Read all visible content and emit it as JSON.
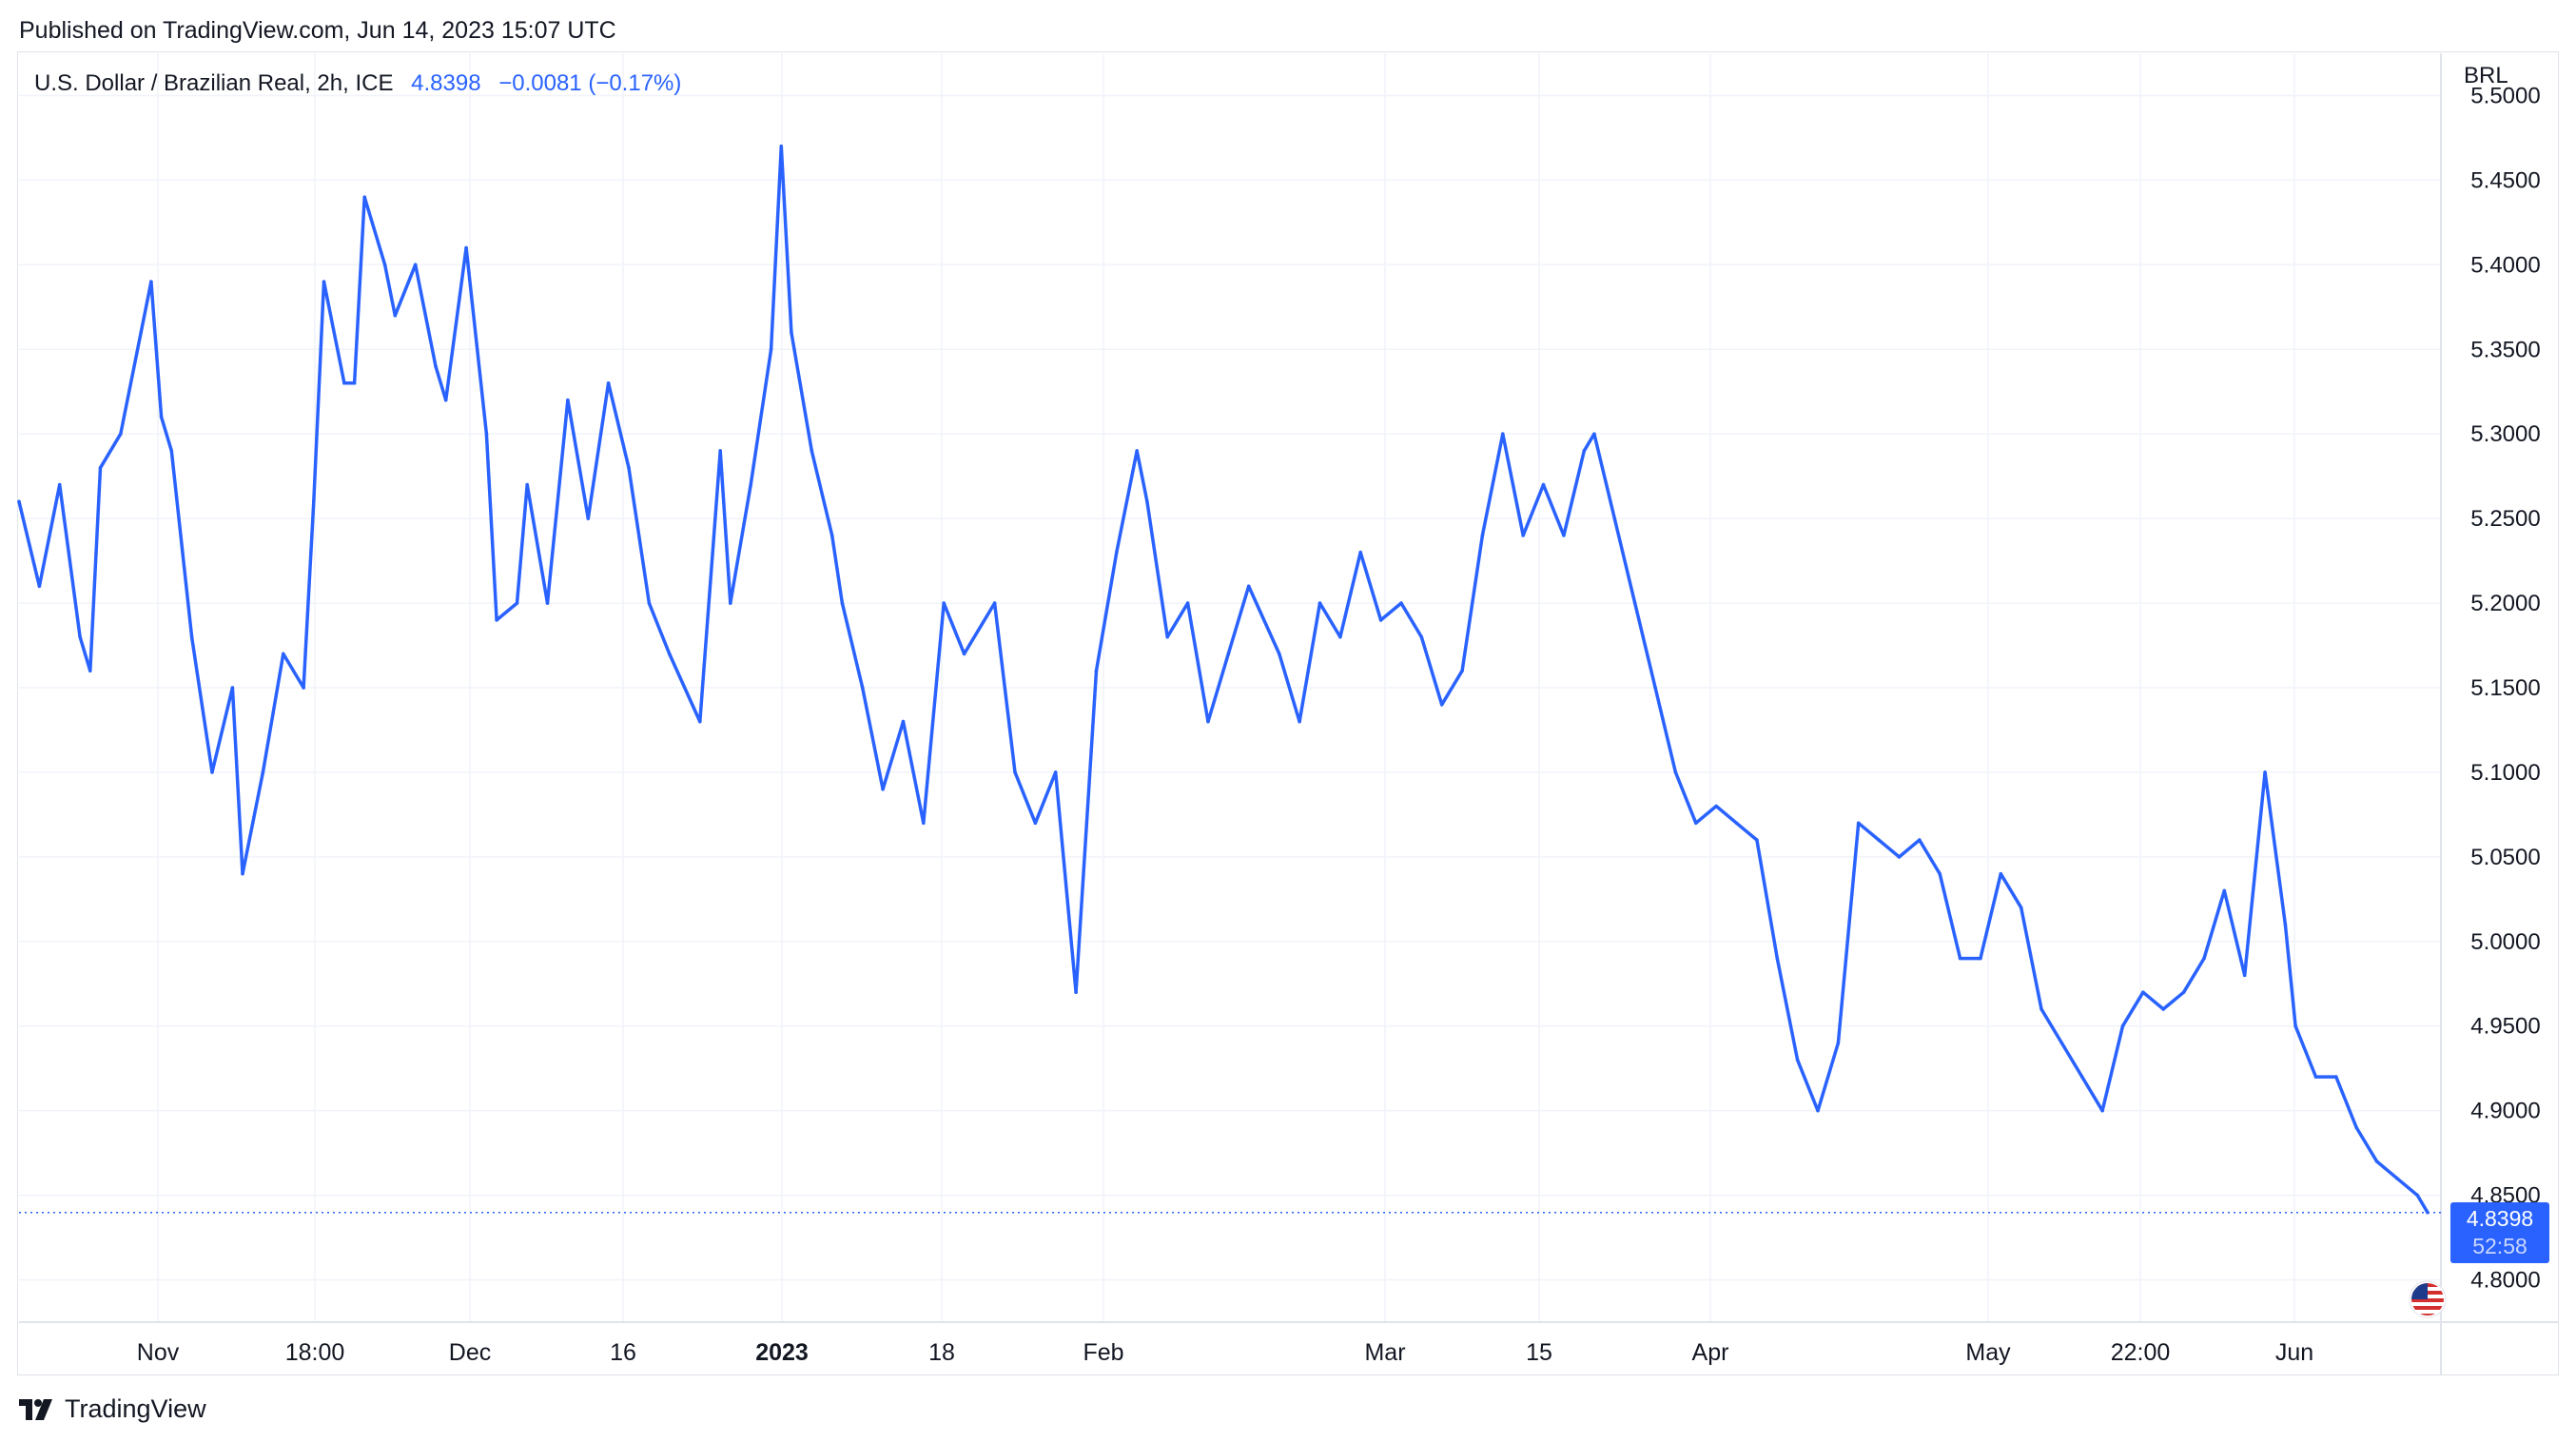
{
  "published": "Published on TradingView.com, Jun 14, 2023 15:07 UTC",
  "legend": {
    "symbol": "U.S. Dollar / Brazilian Real, 2h, ICE",
    "last": "4.8398",
    "change": "−0.0081 (−0.17%)"
  },
  "currency": "BRL",
  "price_tag": {
    "price": "4.8398",
    "countdown": "52:58"
  },
  "brand": "TradingView",
  "colors": {
    "line": "#2962ff",
    "grid": "#f0f3fa",
    "text": "#131722",
    "tag": "#2962ff"
  },
  "icons": [
    "tradingview-logo-icon",
    "us-flag-icon"
  ],
  "chart_data": {
    "type": "line",
    "title": "U.S. Dollar / Brazilian Real, 2h, ICE",
    "series": [
      {
        "name": "USD/BRL",
        "x": [
          "2022-10-20",
          "2022-10-22",
          "2022-10-24",
          "2022-10-26",
          "2022-10-27",
          "2022-10-28",
          "2022-10-30",
          "2022-11-01",
          "2022-11-02",
          "2022-11-03",
          "2022-11-04",
          "2022-11-06",
          "2022-11-08",
          "2022-11-10",
          "2022-11-11",
          "2022-11-13",
          "2022-11-15",
          "2022-11-17",
          "2022-11-18",
          "2022-11-19",
          "2022-11-21",
          "2022-11-22",
          "2022-11-23",
          "2022-11-25",
          "2022-11-26",
          "2022-11-28",
          "2022-11-30",
          "2022-12-01",
          "2022-12-03",
          "2022-12-05",
          "2022-12-06",
          "2022-12-08",
          "2022-12-09",
          "2022-12-11",
          "2022-12-13",
          "2022-12-15",
          "2022-12-17",
          "2022-12-19",
          "2022-12-21",
          "2022-12-23",
          "2022-12-26",
          "2022-12-28",
          "2022-12-29",
          "2022-12-31",
          "2023-01-02",
          "2023-01-03",
          "2023-01-04",
          "2023-01-06",
          "2023-01-08",
          "2023-01-09",
          "2023-01-11",
          "2023-01-13",
          "2023-01-15",
          "2023-01-17",
          "2023-01-19",
          "2023-01-21",
          "2023-01-24",
          "2023-01-26",
          "2023-01-28",
          "2023-01-30",
          "2023-02-01",
          "2023-02-03",
          "2023-02-05",
          "2023-02-07",
          "2023-02-08",
          "2023-02-10",
          "2023-02-12",
          "2023-02-14",
          "2023-02-16",
          "2023-02-18",
          "2023-02-21",
          "2023-02-23",
          "2023-02-25",
          "2023-02-27",
          "2023-03-01",
          "2023-03-03",
          "2023-03-05",
          "2023-03-07",
          "2023-03-09",
          "2023-03-11",
          "2023-03-13",
          "2023-03-15",
          "2023-03-17",
          "2023-03-19",
          "2023-03-21",
          "2023-03-23",
          "2023-03-24",
          "2023-03-26",
          "2023-03-28",
          "2023-03-30",
          "2023-04-01",
          "2023-04-03",
          "2023-04-05",
          "2023-04-07",
          "2023-04-09",
          "2023-04-11",
          "2023-04-13",
          "2023-04-15",
          "2023-04-17",
          "2023-04-19",
          "2023-04-21",
          "2023-04-23",
          "2023-04-25",
          "2023-04-27",
          "2023-04-29",
          "2023-05-01",
          "2023-05-03",
          "2023-05-05",
          "2023-05-07",
          "2023-05-09",
          "2023-05-11",
          "2023-05-13",
          "2023-05-15",
          "2023-05-17",
          "2023-05-19",
          "2023-05-21",
          "2023-05-23",
          "2023-05-25",
          "2023-05-27",
          "2023-05-29",
          "2023-05-31",
          "2023-06-01",
          "2023-06-03",
          "2023-06-05",
          "2023-06-07",
          "2023-06-09",
          "2023-06-11",
          "2023-06-13",
          "2023-06-14"
        ],
        "values": [
          5.26,
          5.21,
          5.27,
          5.18,
          5.16,
          5.28,
          5.3,
          5.36,
          5.39,
          5.31,
          5.29,
          5.18,
          5.1,
          5.15,
          5.04,
          5.1,
          5.17,
          5.15,
          5.26,
          5.39,
          5.33,
          5.33,
          5.44,
          5.4,
          5.37,
          5.4,
          5.34,
          5.32,
          5.41,
          5.3,
          5.19,
          5.2,
          5.27,
          5.2,
          5.32,
          5.25,
          5.33,
          5.28,
          5.2,
          5.17,
          5.13,
          5.29,
          5.2,
          5.27,
          5.35,
          5.47,
          5.36,
          5.29,
          5.24,
          5.2,
          5.15,
          5.09,
          5.13,
          5.07,
          5.2,
          5.17,
          5.2,
          5.1,
          5.07,
          5.1,
          4.97,
          5.16,
          5.23,
          5.29,
          5.26,
          5.18,
          5.2,
          5.13,
          5.17,
          5.21,
          5.17,
          5.13,
          5.2,
          5.18,
          5.23,
          5.19,
          5.2,
          5.18,
          5.14,
          5.16,
          5.24,
          5.3,
          5.24,
          5.27,
          5.24,
          5.29,
          5.3,
          5.25,
          5.2,
          5.15,
          5.1,
          5.07,
          5.08,
          5.07,
          5.06,
          4.99,
          4.93,
          4.9,
          4.94,
          5.07,
          5.06,
          5.05,
          5.06,
          5.04,
          4.99,
          4.99,
          5.04,
          5.02,
          4.96,
          4.94,
          4.92,
          4.9,
          4.95,
          4.97,
          4.96,
          4.97,
          4.99,
          5.03,
          4.98,
          5.1,
          5.01,
          4.95,
          4.92,
          4.92,
          4.89,
          4.87,
          4.86,
          4.85,
          4.8398
        ]
      }
    ],
    "x_tick_labels": [
      "Nov",
      "18:00",
      "Dec",
      "16",
      "2023",
      "18",
      "Feb",
      "Mar",
      "15",
      "Apr",
      "May",
      "22:00",
      "Jun"
    ],
    "y_tick_labels": [
      "5.5000",
      "5.4500",
      "5.4000",
      "5.3500",
      "5.3000",
      "5.2500",
      "5.2000",
      "5.1500",
      "5.1000",
      "5.0500",
      "5.0000",
      "4.9500",
      "4.9000",
      "4.8500",
      "4.8000"
    ],
    "ylim": [
      4.775,
      5.525
    ],
    "grid": true,
    "last_value_line": 4.8398,
    "legend_position": "top-left"
  }
}
